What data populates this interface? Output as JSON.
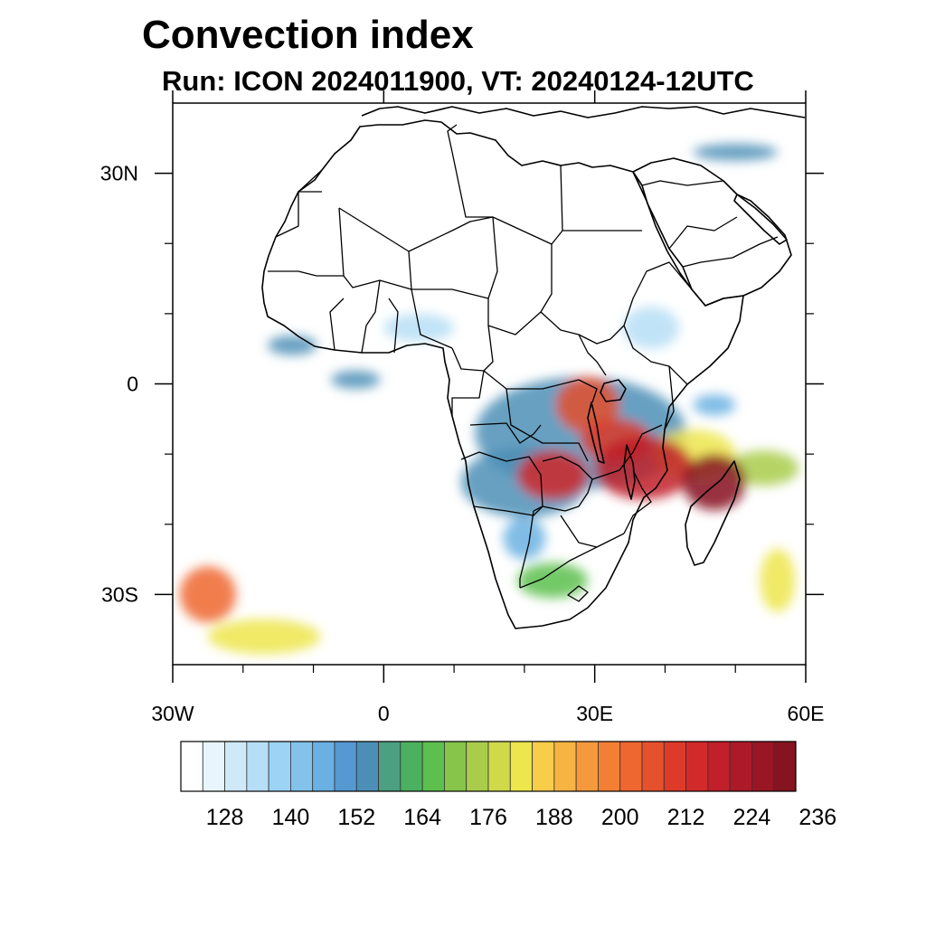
{
  "title": "Convection index",
  "subtitle": "Run: ICON 2024011900,  VT: 20240124-12UTC",
  "map": {
    "lon_range": [
      -30,
      60
    ],
    "lat_range": [
      -40,
      40
    ],
    "lon_ticks": [
      {
        "value": -30,
        "label": "30W"
      },
      {
        "value": 0,
        "label": "0"
      },
      {
        "value": 30,
        "label": "30E"
      },
      {
        "value": 60,
        "label": "60E"
      }
    ],
    "lat_ticks": [
      {
        "value": 30,
        "label": "30N"
      },
      {
        "value": 0,
        "label": "0"
      },
      {
        "value": -30,
        "label": "30S"
      }
    ],
    "minor_lon_ticks": [
      -20,
      -10,
      10,
      20,
      40,
      50
    ],
    "minor_lat_ticks": [
      20,
      10,
      -10,
      -20
    ]
  },
  "colorbar": {
    "colors": [
      "#ffffff",
      "#e8f5fc",
      "#cfe9f9",
      "#b6def6",
      "#9dd3f4",
      "#84c2eb",
      "#6ab0e2",
      "#5598d2",
      "#4c8fb6",
      "#4aa080",
      "#4bb060",
      "#5cbf4e",
      "#86c54a",
      "#a9cd4a",
      "#cfd94a",
      "#ede64c",
      "#f8cd4a",
      "#f7b443",
      "#f6993c",
      "#f37f35",
      "#ee6630",
      "#e5502d",
      "#dd3a2a",
      "#d22a2b",
      "#c11f2a",
      "#ad1a27",
      "#991624",
      "#861320"
    ],
    "labels": [
      "128",
      "140",
      "152",
      "164",
      "176",
      "188",
      "200",
      "212",
      "224",
      "236"
    ],
    "label_box_index": [
      2,
      5,
      8,
      11,
      14,
      17,
      20,
      23,
      26,
      29
    ]
  },
  "convection_field": [
    {
      "lon": 37,
      "lat": -12,
      "rx": 7,
      "ry": 4.5,
      "value": 214
    },
    {
      "lon": 24,
      "lat": -13,
      "rx": 5,
      "ry": 3.5,
      "value": 208
    },
    {
      "lon": 47,
      "lat": -14,
      "rx": 4.5,
      "ry": 4,
      "value": 224
    },
    {
      "lon": 29,
      "lat": -3,
      "rx": 4.5,
      "ry": 4,
      "value": 200
    },
    {
      "lon": 33,
      "lat": -8,
      "rx": 5,
      "ry": 3,
      "value": 205
    },
    {
      "lon": 54,
      "lat": -12,
      "rx": 5,
      "ry": 2.5,
      "value": 168
    },
    {
      "lon": 28,
      "lat": -7,
      "rx": 15,
      "ry": 8,
      "value": 148
    },
    {
      "lon": 20,
      "lat": -14,
      "rx": 9,
      "ry": 5,
      "value": 150
    },
    {
      "lon": 44,
      "lat": -10,
      "rx": 6,
      "ry": 3.5,
      "value": 176
    },
    {
      "lon": 24,
      "lat": -28,
      "rx": 5,
      "ry": 2.5,
      "value": 160
    },
    {
      "lon": 20,
      "lat": -22,
      "rx": 3,
      "ry": 3,
      "value": 140
    },
    {
      "lon": -4,
      "lat": 0.6,
      "rx": 3.5,
      "ry": 1.3,
      "value": 148
    },
    {
      "lon": -13,
      "lat": 5.5,
      "rx": 3.5,
      "ry": 1.4,
      "value": 150
    },
    {
      "lon": 38,
      "lat": 8,
      "rx": 4,
      "ry": 3,
      "value": 128
    },
    {
      "lon": 47,
      "lat": -3,
      "rx": 3,
      "ry": 1.5,
      "value": 140
    },
    {
      "lon": 50,
      "lat": 33,
      "rx": 6,
      "ry": 1.2,
      "value": 150
    },
    {
      "lon": 56,
      "lat": -28,
      "rx": 2.5,
      "ry": 4.5,
      "value": 178
    },
    {
      "lon": -25,
      "lat": -30,
      "rx": 4,
      "ry": 4,
      "value": 196
    },
    {
      "lon": -17,
      "lat": -36,
      "rx": 8,
      "ry": 2.5,
      "value": 176
    },
    {
      "lon": 5,
      "lat": 8,
      "rx": 5,
      "ry": 2,
      "value": 128
    }
  ]
}
